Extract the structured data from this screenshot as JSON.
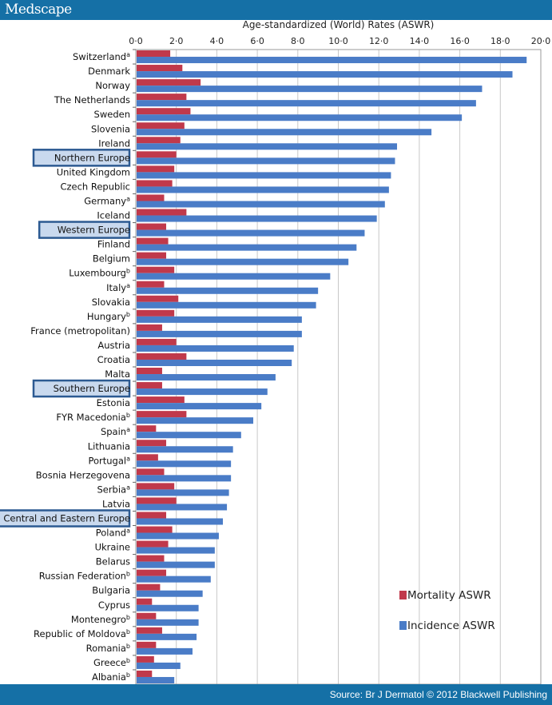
{
  "header": {
    "logo": "Medscape"
  },
  "footer": {
    "source": "Source: Br J Dermatol © 2012 Blackwell Publishing"
  },
  "chart_data": {
    "type": "bar",
    "orientation": "horizontal",
    "title": "Age-standardized (World) Rates (ASWR)",
    "xlim": [
      0,
      20
    ],
    "xticks": [
      "0·0",
      "2·0",
      "4·0",
      "6·0",
      "8·0",
      "10·0",
      "12·0",
      "14·0",
      "16·0",
      "18·0",
      "20·0"
    ],
    "grid": true,
    "legend_position": "bottom-right",
    "categories": [
      {
        "label": "Switzerland",
        "sup": "a"
      },
      {
        "label": "Denmark",
        "sup": ""
      },
      {
        "label": "Norway",
        "sup": ""
      },
      {
        "label": "The Netherlands",
        "sup": ""
      },
      {
        "label": "Sweden",
        "sup": ""
      },
      {
        "label": "Slovenia",
        "sup": ""
      },
      {
        "label": "Ireland",
        "sup": ""
      },
      {
        "label": "Northern Europe",
        "sup": "",
        "highlight": true
      },
      {
        "label": "United Kingdom",
        "sup": ""
      },
      {
        "label": "Czech Republic",
        "sup": ""
      },
      {
        "label": "Germany",
        "sup": "a"
      },
      {
        "label": "Iceland",
        "sup": ""
      },
      {
        "label": "Western Europe",
        "sup": "",
        "highlight": true
      },
      {
        "label": "Finland",
        "sup": ""
      },
      {
        "label": "Belgium",
        "sup": ""
      },
      {
        "label": "Luxembourg",
        "sup": "b"
      },
      {
        "label": "Italy",
        "sup": "a"
      },
      {
        "label": "Slovakia",
        "sup": ""
      },
      {
        "label": "Hungary",
        "sup": "b"
      },
      {
        "label": "France (metropolitan)",
        "sup": ""
      },
      {
        "label": "Austria",
        "sup": ""
      },
      {
        "label": "Croatia",
        "sup": ""
      },
      {
        "label": "Malta",
        "sup": ""
      },
      {
        "label": "Southern Europe",
        "sup": "",
        "highlight": true
      },
      {
        "label": "Estonia",
        "sup": ""
      },
      {
        "label": "FYR Macedonia",
        "sup": "b"
      },
      {
        "label": "Spain",
        "sup": "a"
      },
      {
        "label": "Lithuania",
        "sup": ""
      },
      {
        "label": "Portugal",
        "sup": "a"
      },
      {
        "label": "Bosnia Herzegovena",
        "sup": ""
      },
      {
        "label": "Serbia",
        "sup": "a"
      },
      {
        "label": "Latvia",
        "sup": ""
      },
      {
        "label": "Central and Eastern Europe",
        "sup": "",
        "highlight": true
      },
      {
        "label": "Poland",
        "sup": "a"
      },
      {
        "label": "Ukraine",
        "sup": ""
      },
      {
        "label": "Belarus",
        "sup": ""
      },
      {
        "label": "Russian Federation",
        "sup": "b"
      },
      {
        "label": "Bulgaria",
        "sup": ""
      },
      {
        "label": "Cyprus",
        "sup": ""
      },
      {
        "label": "Montenegro",
        "sup": "b"
      },
      {
        "label": "Republic of Moldova",
        "sup": "b"
      },
      {
        "label": "Romania",
        "sup": "b"
      },
      {
        "label": "Greece",
        "sup": "b"
      },
      {
        "label": "Albania",
        "sup": "b"
      }
    ],
    "series": [
      {
        "name": "Mortality ASWR",
        "color": "#c0394b",
        "values": [
          1.7,
          2.3,
          3.2,
          2.5,
          2.7,
          2.4,
          2.2,
          2.0,
          1.9,
          1.8,
          1.4,
          2.5,
          1.5,
          1.6,
          1.5,
          1.9,
          1.4,
          2.1,
          1.9,
          1.3,
          2.0,
          2.5,
          1.3,
          1.3,
          2.4,
          2.5,
          1.0,
          1.5,
          1.1,
          1.4,
          1.9,
          2.0,
          1.5,
          1.8,
          1.6,
          1.4,
          1.5,
          1.2,
          0.8,
          1.0,
          1.3,
          1.0,
          0.9,
          0.8
        ]
      },
      {
        "name": "Incidence ASWR",
        "color": "#4a7cc7",
        "values": [
          19.3,
          18.6,
          17.1,
          16.8,
          16.1,
          14.6,
          12.9,
          12.8,
          12.6,
          12.5,
          12.3,
          11.9,
          11.3,
          10.9,
          10.5,
          9.6,
          9.0,
          8.9,
          8.2,
          8.2,
          7.8,
          7.7,
          6.9,
          6.5,
          6.2,
          5.8,
          5.2,
          4.8,
          4.7,
          4.7,
          4.6,
          4.5,
          4.3,
          4.1,
          3.9,
          3.9,
          3.7,
          3.3,
          3.1,
          3.1,
          3.0,
          2.8,
          2.2,
          1.9
        ]
      }
    ]
  }
}
